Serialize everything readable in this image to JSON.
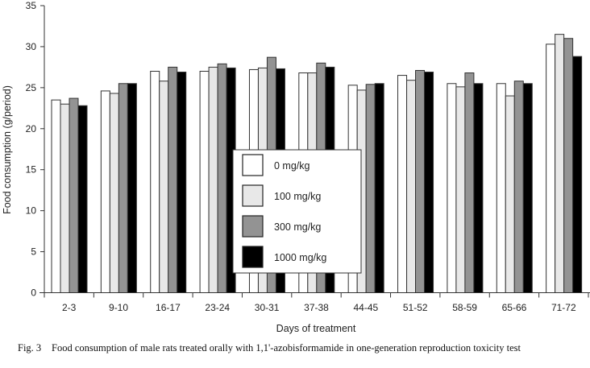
{
  "chart_data": {
    "type": "bar",
    "title": "",
    "xlabel": "Days of treatment",
    "ylabel": "Food consumption (g/period)",
    "ylim": [
      0,
      35
    ],
    "yticks": [
      0,
      5,
      10,
      15,
      20,
      25,
      30,
      35
    ],
    "grid": false,
    "legend_position": "center",
    "categories": [
      "2-3",
      "9-10",
      "16-17",
      "23-24",
      "30-31",
      "37-38",
      "44-45",
      "51-52",
      "58-59",
      "65-66",
      "71-72"
    ],
    "series": [
      {
        "name": "0 mg/kg",
        "color": "#ffffff",
        "values": [
          23.5,
          24.6,
          27.0,
          27.0,
          27.2,
          26.8,
          25.3,
          26.5,
          25.5,
          25.5,
          30.3
        ]
      },
      {
        "name": "100 mg/kg",
        "color": "#e8e8e8",
        "values": [
          23.0,
          24.3,
          25.8,
          27.5,
          27.4,
          26.8,
          24.7,
          25.9,
          25.1,
          24.0,
          31.5
        ]
      },
      {
        "name": "300 mg/kg",
        "color": "#939393",
        "values": [
          23.7,
          25.5,
          27.5,
          27.9,
          28.7,
          28.0,
          25.4,
          27.1,
          26.8,
          25.8,
          31.0
        ]
      },
      {
        "name": "1000 mg/kg",
        "color": "#000000",
        "values": [
          22.8,
          25.5,
          26.9,
          27.4,
          27.3,
          27.5,
          25.5,
          26.9,
          25.5,
          25.5,
          28.8
        ]
      }
    ]
  },
  "caption": {
    "label": "Fig. 3",
    "text": "Food consumption of male rats treated orally with 1,1'-azobisformamide in one-generation reproduction toxicity test"
  }
}
